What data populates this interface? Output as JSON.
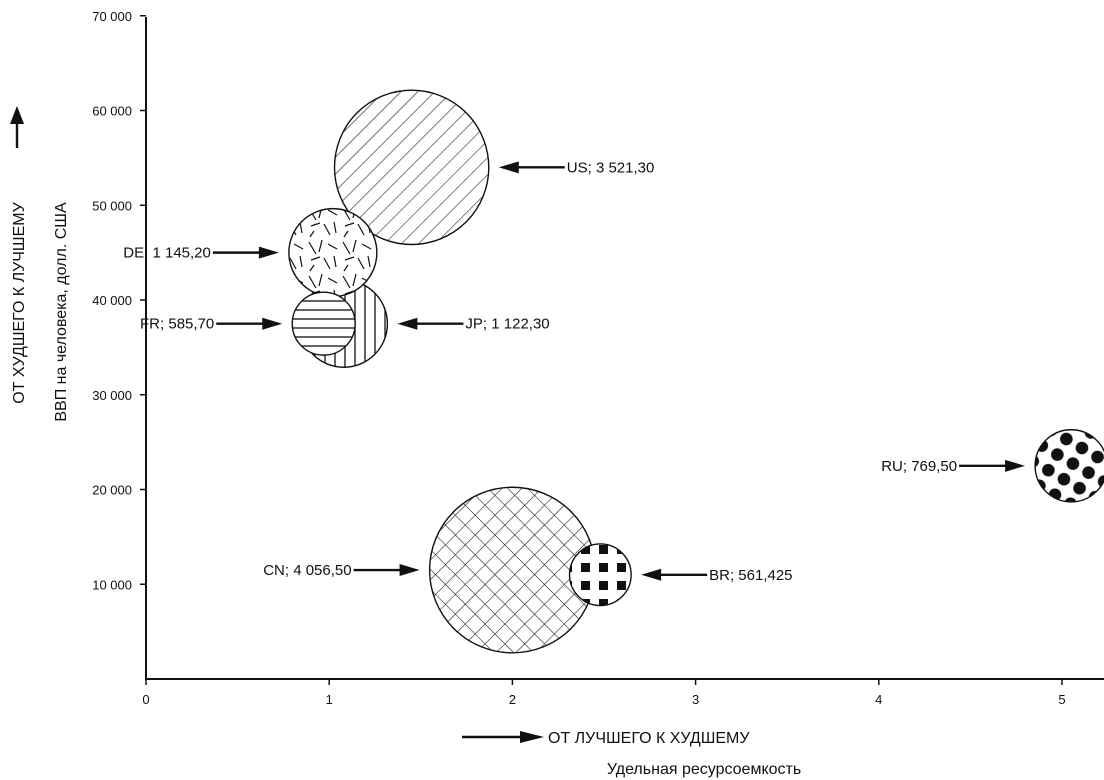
{
  "chart_data": {
    "type": "bubble",
    "xlabel": "Удельная ресурсоемкость",
    "xlabel_direction": "ОТ ЛУЧШЕГО К ХУДШЕМУ",
    "ylabel": "ВВП на человека, долл. США",
    "ylabel_direction": "ОТ ХУДШЕГО К ЛУЧШЕМУ",
    "xlim": [
      0,
      5.25
    ],
    "ylim": [
      0,
      70000
    ],
    "x_ticks": [
      0,
      1,
      2,
      3,
      4,
      5
    ],
    "x_tick_labels": [
      "0",
      "1",
      "2",
      "3",
      "4",
      "5"
    ],
    "y_ticks": [
      10000,
      20000,
      30000,
      40000,
      50000,
      60000,
      70000
    ],
    "y_tick_labels": [
      "10 000",
      "20 000",
      "30 000",
      "40 000",
      "50 000",
      "60 000",
      "70 000"
    ],
    "grid": false,
    "points": [
      {
        "id": "US",
        "label": "US; 3 521,30",
        "x": 1.45,
        "y": 54000,
        "size": 3521.3,
        "pattern": "diagonal-hatch",
        "label_side": "right"
      },
      {
        "id": "JP",
        "label": "JP; 1 122,30",
        "x": 1.08,
        "y": 37500,
        "size": 1122.3,
        "pattern": "vertical-stripes",
        "label_side": "right"
      },
      {
        "id": "DE",
        "label": "DE; 1 145,20",
        "x": 1.02,
        "y": 45000,
        "size": 1145.2,
        "pattern": "random-dashes",
        "label_side": "left"
      },
      {
        "id": "FR",
        "label": "FR; 585,70",
        "x": 0.97,
        "y": 37500,
        "size": 585.7,
        "pattern": "horizontal-stripes",
        "label_side": "left"
      },
      {
        "id": "CN",
        "label": "CN; 4 056,50",
        "x": 2.0,
        "y": 11500,
        "size": 4056.5,
        "pattern": "cross-hatch",
        "label_side": "left"
      },
      {
        "id": "BR",
        "label": "BR; 561,425",
        "x": 2.48,
        "y": 11000,
        "size": 561.425,
        "pattern": "squares",
        "label_side": "right"
      },
      {
        "id": "RU",
        "label": "RU; 769,50",
        "x": 5.05,
        "y": 22500,
        "size": 769.5,
        "pattern": "dots",
        "label_side": "left"
      }
    ]
  }
}
